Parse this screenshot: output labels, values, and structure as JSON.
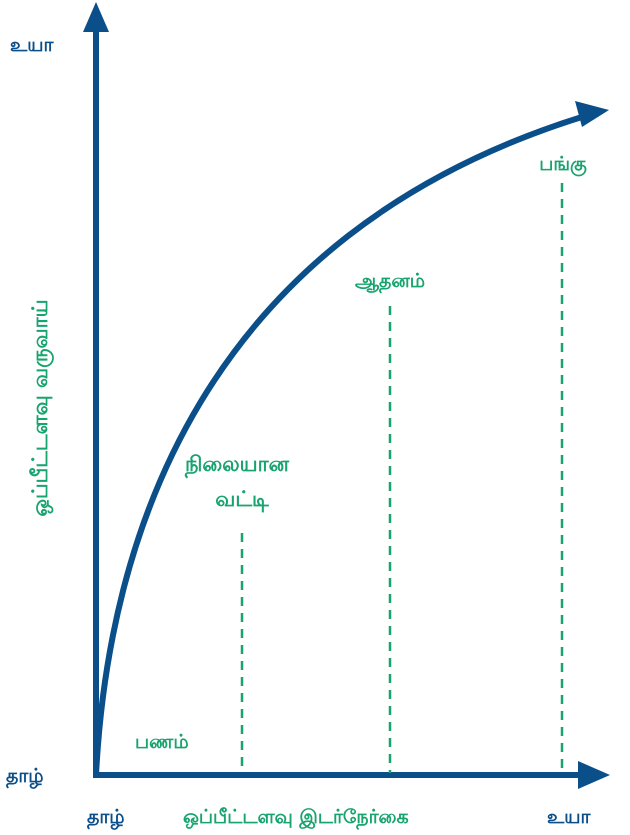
{
  "colors": {
    "axis": "#0a4f8a",
    "label_green": "#18a46e",
    "label_dark": "#0a4f8a"
  },
  "y_axis": {
    "top_label": "உயா",
    "bottom_label": "தாழ்",
    "title": "ஒப்பீட்டளவு வருவாய்"
  },
  "x_axis": {
    "left_label": "தாழ்",
    "title": "ஒப்பீட்டளவு இடர்நேர்கை",
    "right_label": "உயா"
  },
  "points": {
    "money": "பணம்",
    "fixed_interest_line1": "நிலையான",
    "fixed_interest_line2": "வட்டி",
    "property": "ஆதனம்",
    "shares": "பங்கு"
  }
}
